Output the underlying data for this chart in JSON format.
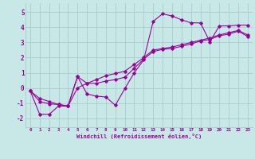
{
  "xlabel": "Windchill (Refroidissement éolien,°C)",
  "line_color": "#990099",
  "bg_color": "#c8e8e8",
  "grid_color": "#aacccc",
  "xlim": [
    -0.5,
    23.5
  ],
  "ylim": [
    -2.6,
    5.6
  ],
  "xticks": [
    0,
    1,
    2,
    3,
    4,
    5,
    6,
    7,
    8,
    9,
    10,
    11,
    12,
    13,
    14,
    15,
    16,
    17,
    18,
    19,
    20,
    21,
    22,
    23
  ],
  "yticks": [
    -2,
    -1,
    0,
    1,
    2,
    3,
    4,
    5
  ],
  "line1_x": [
    0,
    1,
    2,
    3,
    4,
    5,
    6,
    7,
    8,
    9,
    10,
    11,
    12,
    13,
    14,
    15,
    16,
    17,
    18,
    19,
    20,
    21,
    22,
    23
  ],
  "line1_y": [
    -0.2,
    -1.75,
    -1.75,
    -1.2,
    -1.2,
    0.75,
    -0.4,
    -0.55,
    -0.6,
    -1.15,
    -0.05,
    1.0,
    1.85,
    4.4,
    4.9,
    4.75,
    4.5,
    4.3,
    4.3,
    3.05,
    4.1,
    4.1,
    4.15,
    4.15
  ],
  "line2_x": [
    0,
    1,
    2,
    3,
    4,
    5,
    6,
    7,
    8,
    9,
    10,
    11,
    12,
    13,
    14,
    15,
    16,
    17,
    18,
    19,
    20,
    21,
    22,
    23
  ],
  "line2_y": [
    -0.2,
    -0.9,
    -1.05,
    -1.1,
    -1.2,
    0.0,
    0.3,
    0.55,
    0.8,
    0.95,
    1.1,
    1.55,
    2.0,
    2.5,
    2.6,
    2.7,
    2.85,
    3.0,
    3.15,
    3.3,
    3.5,
    3.65,
    3.8,
    3.5
  ],
  "line3_x": [
    0,
    1,
    2,
    3,
    4,
    5,
    6,
    7,
    8,
    9,
    10,
    11,
    12,
    13,
    14,
    15,
    16,
    17,
    18,
    19,
    20,
    21,
    22,
    23
  ],
  "line3_y": [
    -0.2,
    -0.7,
    -0.9,
    -1.1,
    -1.2,
    0.75,
    0.3,
    0.3,
    0.45,
    0.55,
    0.7,
    1.3,
    1.9,
    2.4,
    2.55,
    2.6,
    2.75,
    2.9,
    3.1,
    3.2,
    3.45,
    3.55,
    3.75,
    3.4
  ]
}
